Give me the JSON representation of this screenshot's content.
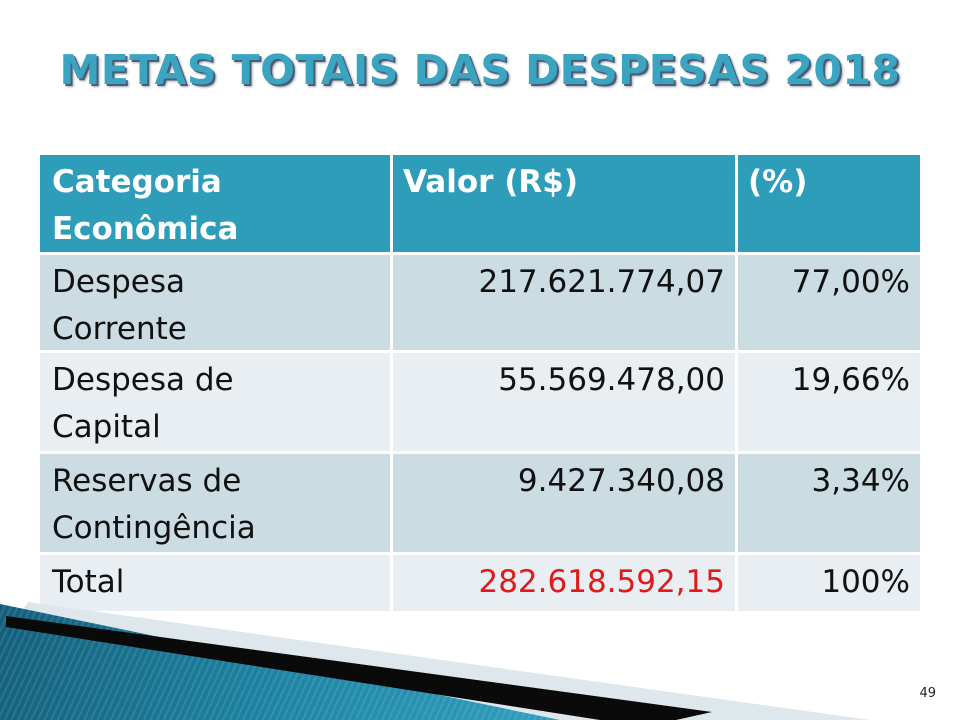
{
  "slide": {
    "title": "METAS TOTAIS DAS DESPESAS 2018",
    "page_number": "49"
  },
  "table": {
    "headers": [
      "Categoria\nEconômica",
      "Valor (R$)",
      "(%)"
    ],
    "rows": [
      {
        "category": "Despesa\nCorrente",
        "valor": "217.621.774,07",
        "pct": "77,00%"
      },
      {
        "category": "Despesa de\nCapital",
        "valor": "55.569.478,00",
        "pct": "19,66%"
      },
      {
        "category": "Reservas de\nContingência",
        "valor": "9.427.340,08",
        "pct": "3,34%"
      },
      {
        "category": "Total",
        "valor": "282.618.592,15",
        "pct": "100%"
      }
    ]
  },
  "colors": {
    "title_text": "#3ba4c0",
    "header_background": "#2d9db9",
    "band_dark": "#cbdce3",
    "band_light": "#e8eef1",
    "total_value_text": "#e01a1a",
    "corner_teal": "#2f9dbd",
    "corner_pale": "#dde7ec",
    "corner_black": "#0a0a0a"
  },
  "chart_data": {
    "type": "table",
    "title": "METAS TOTAIS DAS DESPESAS 2018",
    "columns": [
      "Categoria Econômica",
      "Valor (R$)",
      "(%)"
    ],
    "rows": [
      [
        "Despesa Corrente",
        "217.621.774,07",
        "77,00%"
      ],
      [
        "Despesa de Capital",
        "55.569.478,00",
        "19,66%"
      ],
      [
        "Reservas de Contingência",
        "9.427.340,08",
        "3,34%"
      ],
      [
        "Total",
        "282.618.592,15",
        "100%"
      ]
    ]
  }
}
